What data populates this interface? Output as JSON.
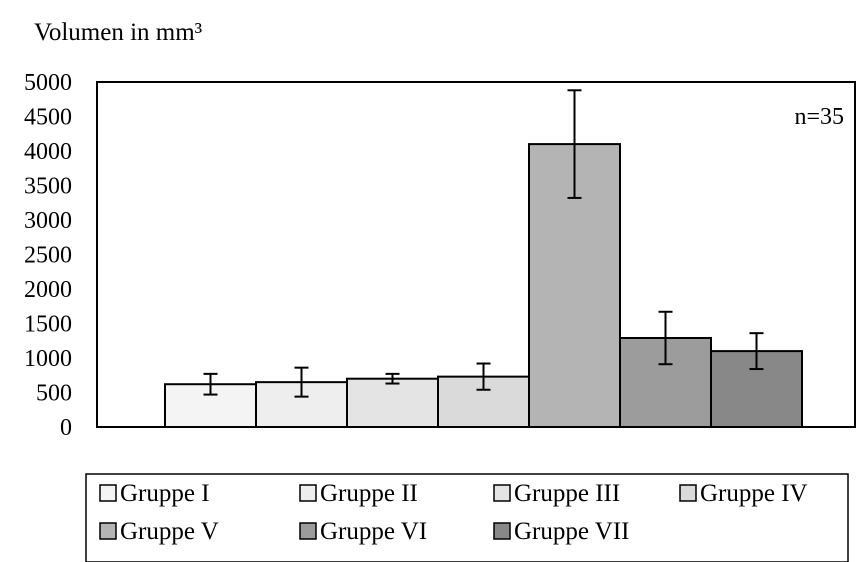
{
  "chart_data": {
    "type": "bar",
    "ylabel": "Volumen in mm³",
    "ylim": [
      0,
      5000
    ],
    "yticks": [
      0,
      500,
      1000,
      1500,
      2000,
      2500,
      3000,
      3500,
      4000,
      4500,
      5000
    ],
    "grid": false,
    "annotation": "n=35",
    "legend_position": "bottom",
    "series": [
      {
        "name": "Gruppe I",
        "value": 620,
        "error": 150,
        "color": "#f4f4f4"
      },
      {
        "name": "Gruppe II",
        "value": 650,
        "error": 210,
        "color": "#eeeeee"
      },
      {
        "name": "Gruppe III",
        "value": 700,
        "error": 70,
        "color": "#e4e4e4"
      },
      {
        "name": "Gruppe IV",
        "value": 730,
        "error": 190,
        "color": "#dadada"
      },
      {
        "name": "Gruppe V",
        "value": 4100,
        "error": 780,
        "color": "#b4b4b4"
      },
      {
        "name": "Gruppe VI",
        "value": 1290,
        "error": 380,
        "color": "#9c9c9c"
      },
      {
        "name": "Gruppe VII",
        "value": 1100,
        "error": 260,
        "color": "#888888"
      }
    ]
  }
}
